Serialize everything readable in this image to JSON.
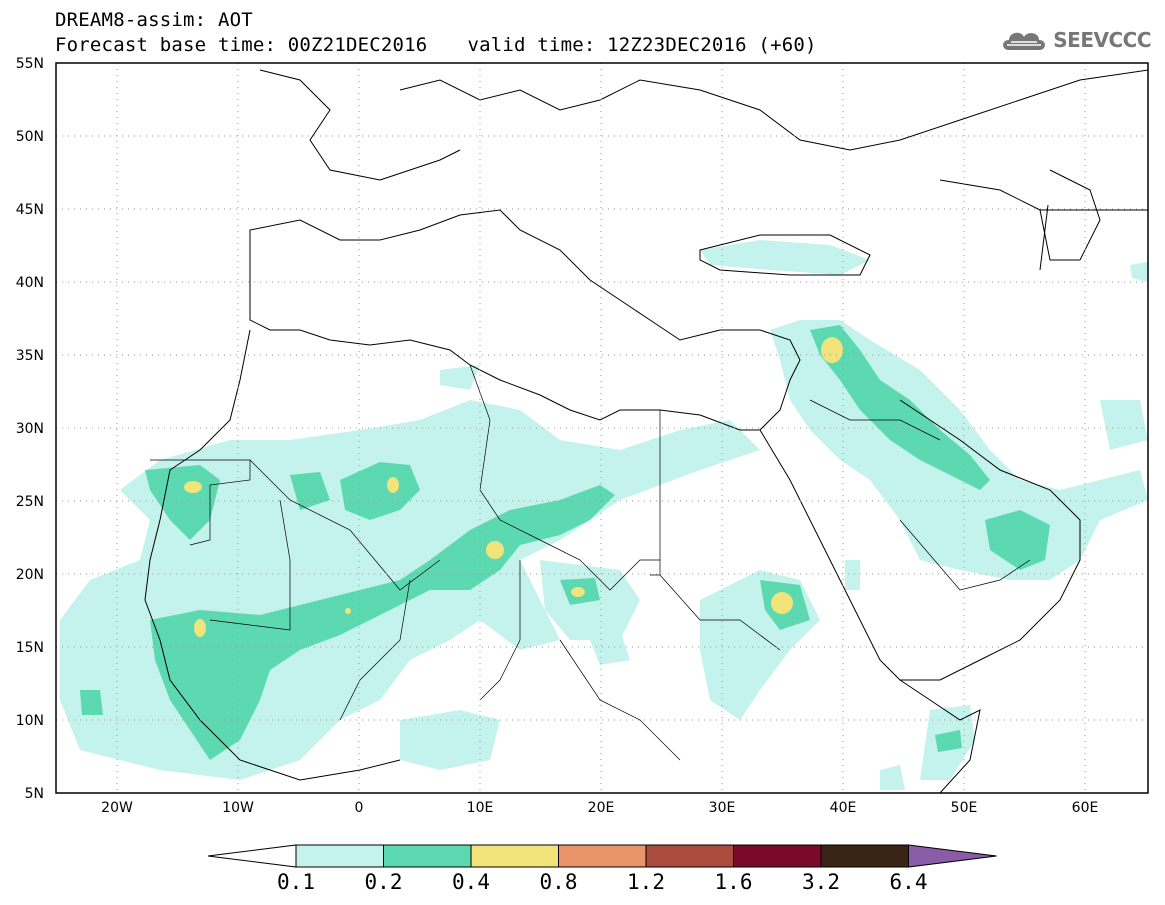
{
  "header": {
    "title": "DREAM8-assim: AOT",
    "base_time": "Forecast base time: 00Z21DEC2016",
    "valid_time": "valid time: 12Z23DEC2016 (+60)"
  },
  "logo": {
    "text": "SEEVCCC",
    "icon": "cloud-icon"
  },
  "map": {
    "lon_range": [
      -25,
      65
    ],
    "lat_range": [
      5,
      55
    ],
    "lon_ticks": [
      "20W",
      "10W",
      "0",
      "10E",
      "20E",
      "30E",
      "40E",
      "50E",
      "60E"
    ],
    "lat_ticks": [
      "55N",
      "50N",
      "45N",
      "40N",
      "35N",
      "30N",
      "25N",
      "20N",
      "15N",
      "10N",
      "5N"
    ],
    "grid": "dotted"
  },
  "colorbar": {
    "labels": [
      "0.1",
      "0.2",
      "0.4",
      "0.8",
      "1.2",
      "1.6",
      "3.2",
      "6.4"
    ],
    "colors": [
      "#ffffff",
      "#c4f2ec",
      "#5cd9b0",
      "#f2e37a",
      "#e8936a",
      "#a94c3e",
      "#7a0a2a",
      "#3a2416",
      "#8a5ba6"
    ]
  }
}
